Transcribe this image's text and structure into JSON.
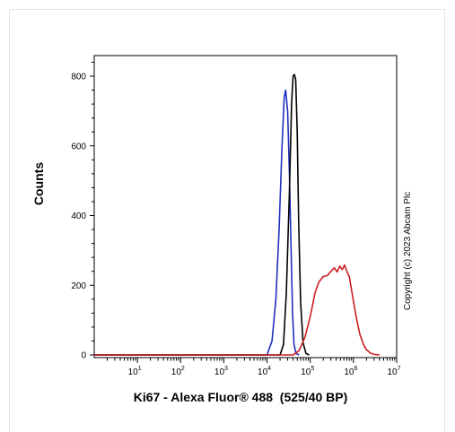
{
  "chart_data": {
    "type": "line",
    "xlabel": "Ki67 - Alexa Fluor® 488  (525/40 BP)",
    "ylabel": "Counts",
    "side_note": "Copyright (c) 2023 Abcam Plc",
    "x_scale": "log",
    "xlim": [
      1,
      10000000
    ],
    "ylim": [
      0,
      860
    ],
    "y_ticks": [
      0,
      200,
      400,
      600,
      800
    ],
    "x_ticks": [
      {
        "value": 10,
        "base": "10",
        "exp": "1"
      },
      {
        "value": 100,
        "base": "10",
        "exp": "2"
      },
      {
        "value": 1000,
        "base": "10",
        "exp": "3"
      },
      {
        "value": 10000,
        "base": "10",
        "exp": "4"
      },
      {
        "value": 100000,
        "base": "10",
        "exp": "5"
      },
      {
        "value": 1000000,
        "base": "10",
        "exp": "6"
      },
      {
        "value": 10000000,
        "base": "10",
        "exp": "7"
      }
    ],
    "legend": "none",
    "grid": false,
    "series": [
      {
        "color": "#1f2fbf",
        "x": [
          1,
          10000,
          13000,
          16000,
          19000,
          22000,
          25000,
          27000,
          30000,
          33000,
          36000,
          39000,
          42000,
          47000,
          55000
        ],
        "y": [
          0,
          0,
          40,
          160,
          360,
          590,
          740,
          760,
          700,
          520,
          300,
          120,
          30,
          4,
          0
        ]
      },
      {
        "color": "#000000",
        "x": [
          1,
          20000,
          24000,
          28000,
          33000,
          37000,
          40000,
          43000,
          46000,
          50000,
          54000,
          60000,
          68000,
          80000,
          95000
        ],
        "y": [
          0,
          0,
          30,
          180,
          470,
          720,
          800,
          805,
          790,
          640,
          380,
          150,
          35,
          4,
          0
        ]
      },
      {
        "color": "#cc1f1f",
        "x": [
          1,
          40000,
          55000,
          75000,
          100000,
          130000,
          160000,
          200000,
          250000,
          300000,
          360000,
          420000,
          480000,
          550000,
          620000,
          700000,
          800000,
          950000,
          1150000,
          1400000,
          1700000,
          2000000,
          2500000,
          3200000,
          4000000
        ],
        "y": [
          0,
          0,
          12,
          50,
          110,
          180,
          210,
          225,
          228,
          240,
          250,
          238,
          255,
          245,
          258,
          240,
          225,
          170,
          110,
          60,
          30,
          15,
          5,
          1,
          0
        ]
      }
    ]
  }
}
